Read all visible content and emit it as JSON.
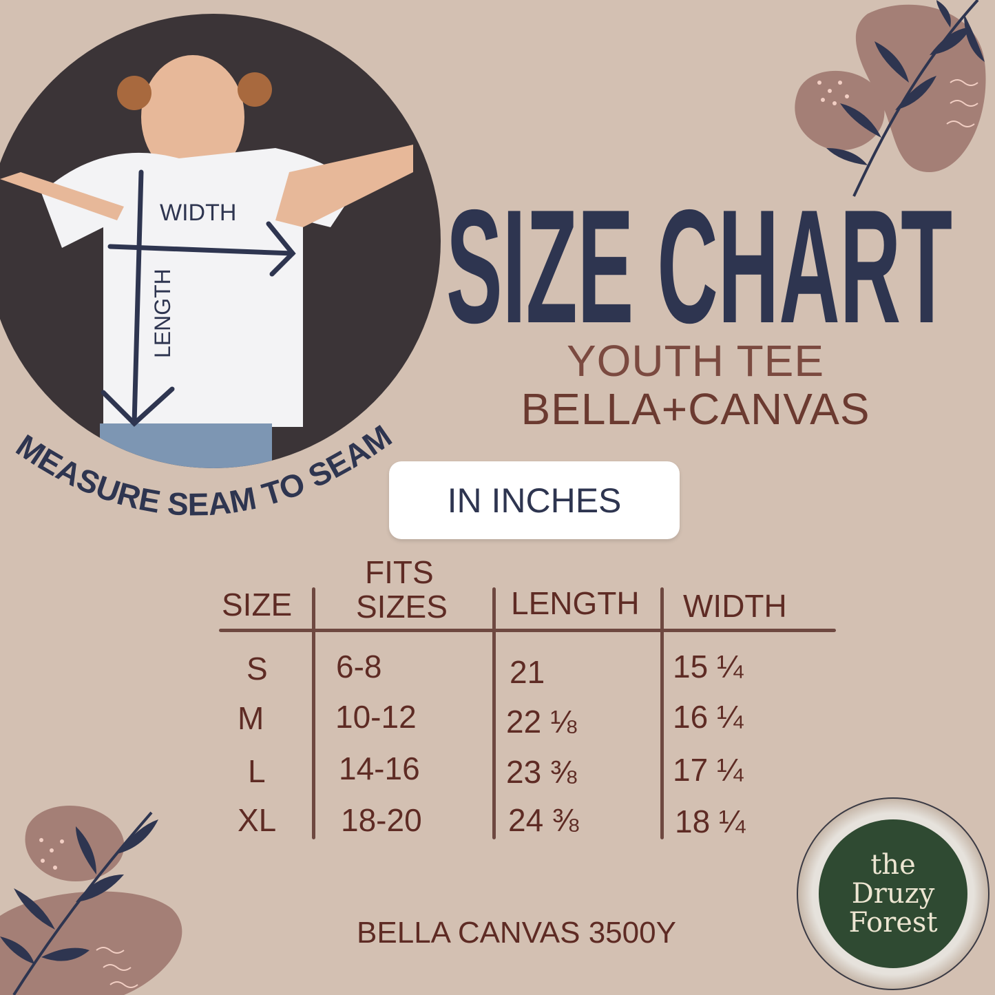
{
  "photo": {
    "width_label": "WIDTH",
    "length_label": "LENGTH"
  },
  "measure_caption": "MEASURE SEAM TO SEAM",
  "title": "SIZE CHART",
  "subtitle_1": "YOUTH TEE",
  "subtitle_2": "BELLA+CANVAS",
  "unit_button": "IN INCHES",
  "table": {
    "headers": {
      "size": "SIZE",
      "fits_1": "FITS",
      "fits_2": "SIZES",
      "length": "LENGTH",
      "width": "WIDTH"
    },
    "rows": [
      {
        "size": "S",
        "fits": "6-8",
        "length": "21",
        "width": "15 ¼"
      },
      {
        "size": "M",
        "fits": "10-12",
        "length": "22 ⅛",
        "width": "16 ¼"
      },
      {
        "size": "L",
        "fits": "14-16",
        "length": "23 ⅜",
        "width": "17 ¼"
      },
      {
        "size": "XL",
        "fits": "18-20",
        "length": "24 ⅜",
        "width": "18 ¼"
      }
    ]
  },
  "footer": "BELLA CANVAS 3500Y",
  "logo": {
    "line1": "the",
    "line2": "Druzy",
    "line3": "Forest"
  },
  "colors": {
    "background": "#d3c0b2",
    "navy": "#2e3550",
    "brown": "#5e2b24",
    "logo_green": "#2f4a32"
  }
}
